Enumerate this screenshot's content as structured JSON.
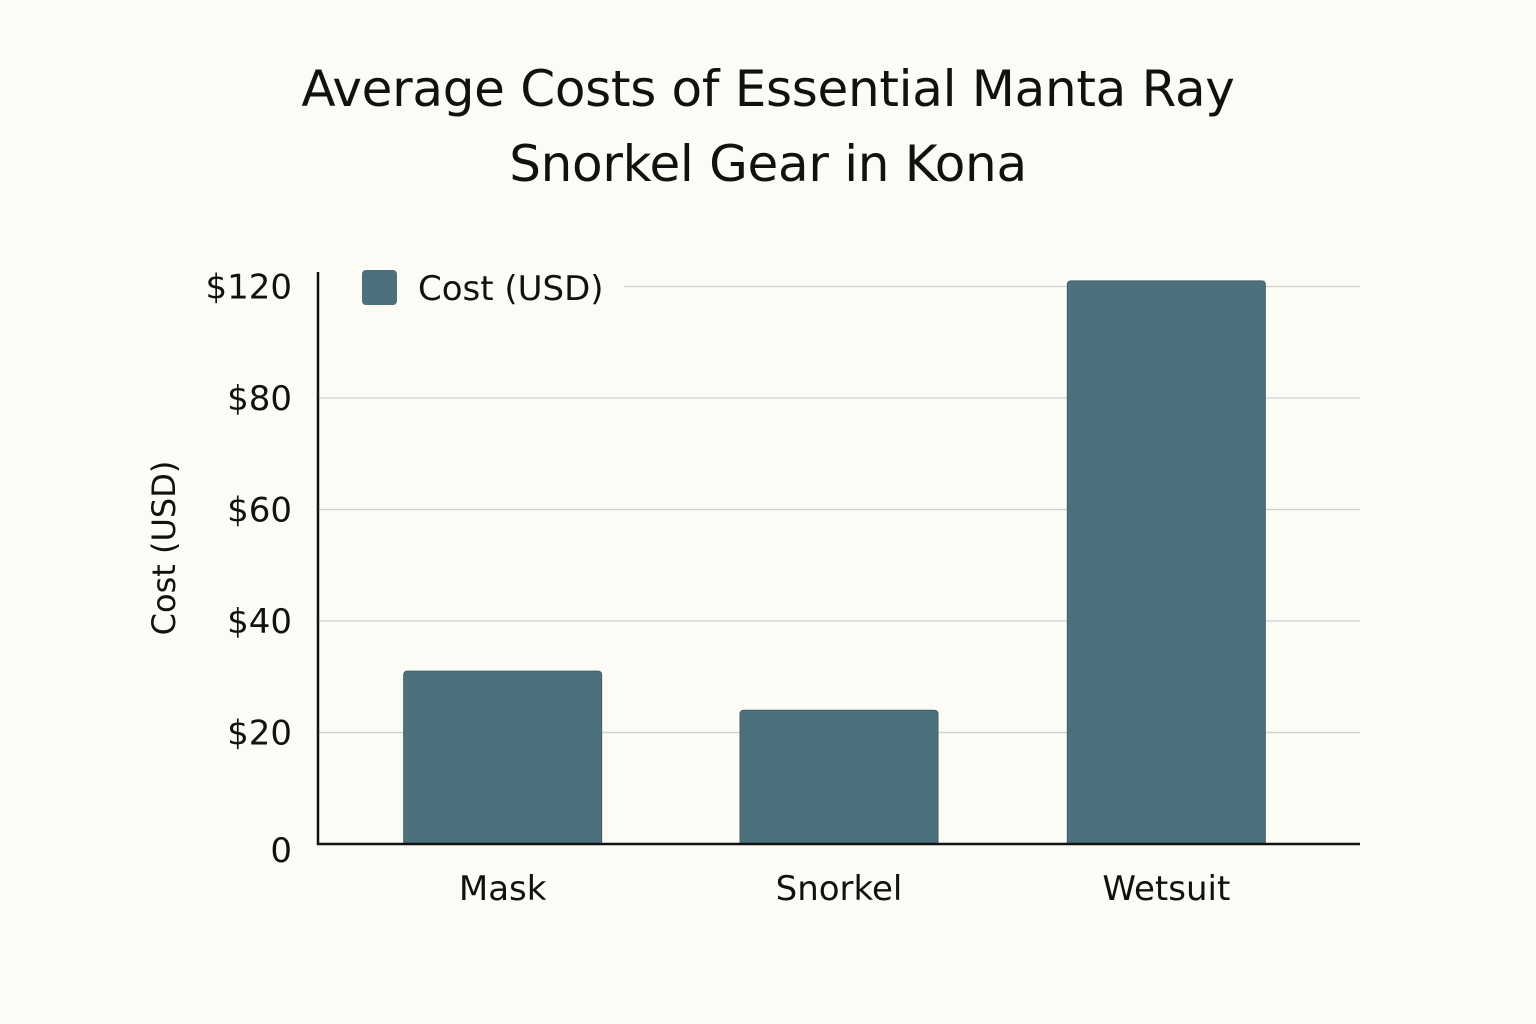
{
  "chart_data": {
    "type": "bar",
    "title_lines": [
      "Average Costs of Essential Manta Ray",
      "Snorkel Gear in Kona"
    ],
    "categories": [
      "Mask",
      "Snorkel",
      "Wetsuit"
    ],
    "series": [
      {
        "name": "Cost (USD)",
        "values": [
          31,
          24,
          122
        ],
        "color": "#4d717c"
      }
    ],
    "ylabel": "Cost (USD)",
    "xlabel": "",
    "y_ticks": [
      {
        "value": 0,
        "label": "0"
      },
      {
        "value": 20,
        "label": "$20"
      },
      {
        "value": 40,
        "label": "$40"
      },
      {
        "value": 60,
        "label": "$60"
      },
      {
        "value": 80,
        "label": "$80"
      },
      {
        "value": 120,
        "label": "$120"
      }
    ],
    "y_scale_note": "tick spacing is uniform; top tick labelled $120 sits one step above $80",
    "grid": true,
    "legend_position": "top-left",
    "colors": {
      "bar": "#4d717c",
      "grid": "#cfcfcf",
      "axis": "#111111",
      "background": "#fcfbf6"
    }
  }
}
